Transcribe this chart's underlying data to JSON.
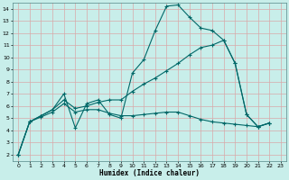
{
  "xlabel": "Humidex (Indice chaleur)",
  "bg_color": "#c8eeea",
  "grid_color": "#d8a8a8",
  "line_color": "#006868",
  "xlim": [
    -0.5,
    23.5
  ],
  "ylim": [
    1.5,
    14.5
  ],
  "xticks": [
    0,
    1,
    2,
    3,
    4,
    5,
    6,
    7,
    8,
    9,
    10,
    11,
    12,
    13,
    14,
    15,
    16,
    17,
    18,
    19,
    20,
    21,
    22,
    23
  ],
  "yticks": [
    2,
    3,
    4,
    5,
    6,
    7,
    8,
    9,
    10,
    11,
    12,
    13,
    14
  ],
  "line1_x": [
    0,
    1,
    2,
    3,
    4,
    5,
    6,
    7,
    8,
    9,
    10,
    11,
    12,
    13,
    14,
    15,
    16,
    17,
    18,
    19,
    20,
    21,
    22
  ],
  "line1_y": [
    2.0,
    4.7,
    5.2,
    5.7,
    7.0,
    4.2,
    6.2,
    6.5,
    5.3,
    5.0,
    8.7,
    9.8,
    12.2,
    14.2,
    14.3,
    13.3,
    12.4,
    12.2,
    11.4,
    9.5,
    5.3,
    4.3,
    4.6
  ],
  "line2_x": [
    0,
    1,
    2,
    3,
    4,
    5,
    6,
    7,
    8,
    9,
    10,
    11,
    12,
    13,
    14,
    15,
    16,
    17,
    18,
    19,
    20,
    21,
    22
  ],
  "line2_y": [
    2.0,
    4.7,
    5.2,
    5.7,
    6.5,
    5.8,
    6.0,
    6.3,
    6.5,
    6.5,
    7.2,
    7.8,
    8.3,
    8.9,
    9.5,
    10.2,
    10.8,
    11.0,
    11.4,
    9.5,
    5.3,
    4.3,
    4.6
  ],
  "line3_x": [
    0,
    1,
    2,
    3,
    4,
    5,
    6,
    7,
    8,
    9,
    10,
    11,
    12,
    13,
    14,
    15,
    16,
    17,
    18,
    19,
    20,
    21,
    22
  ],
  "line3_y": [
    2.0,
    4.7,
    5.1,
    5.5,
    6.2,
    5.5,
    5.7,
    5.7,
    5.4,
    5.2,
    5.2,
    5.3,
    5.4,
    5.5,
    5.5,
    5.2,
    4.9,
    4.7,
    4.6,
    4.5,
    4.4,
    4.3,
    4.6
  ]
}
